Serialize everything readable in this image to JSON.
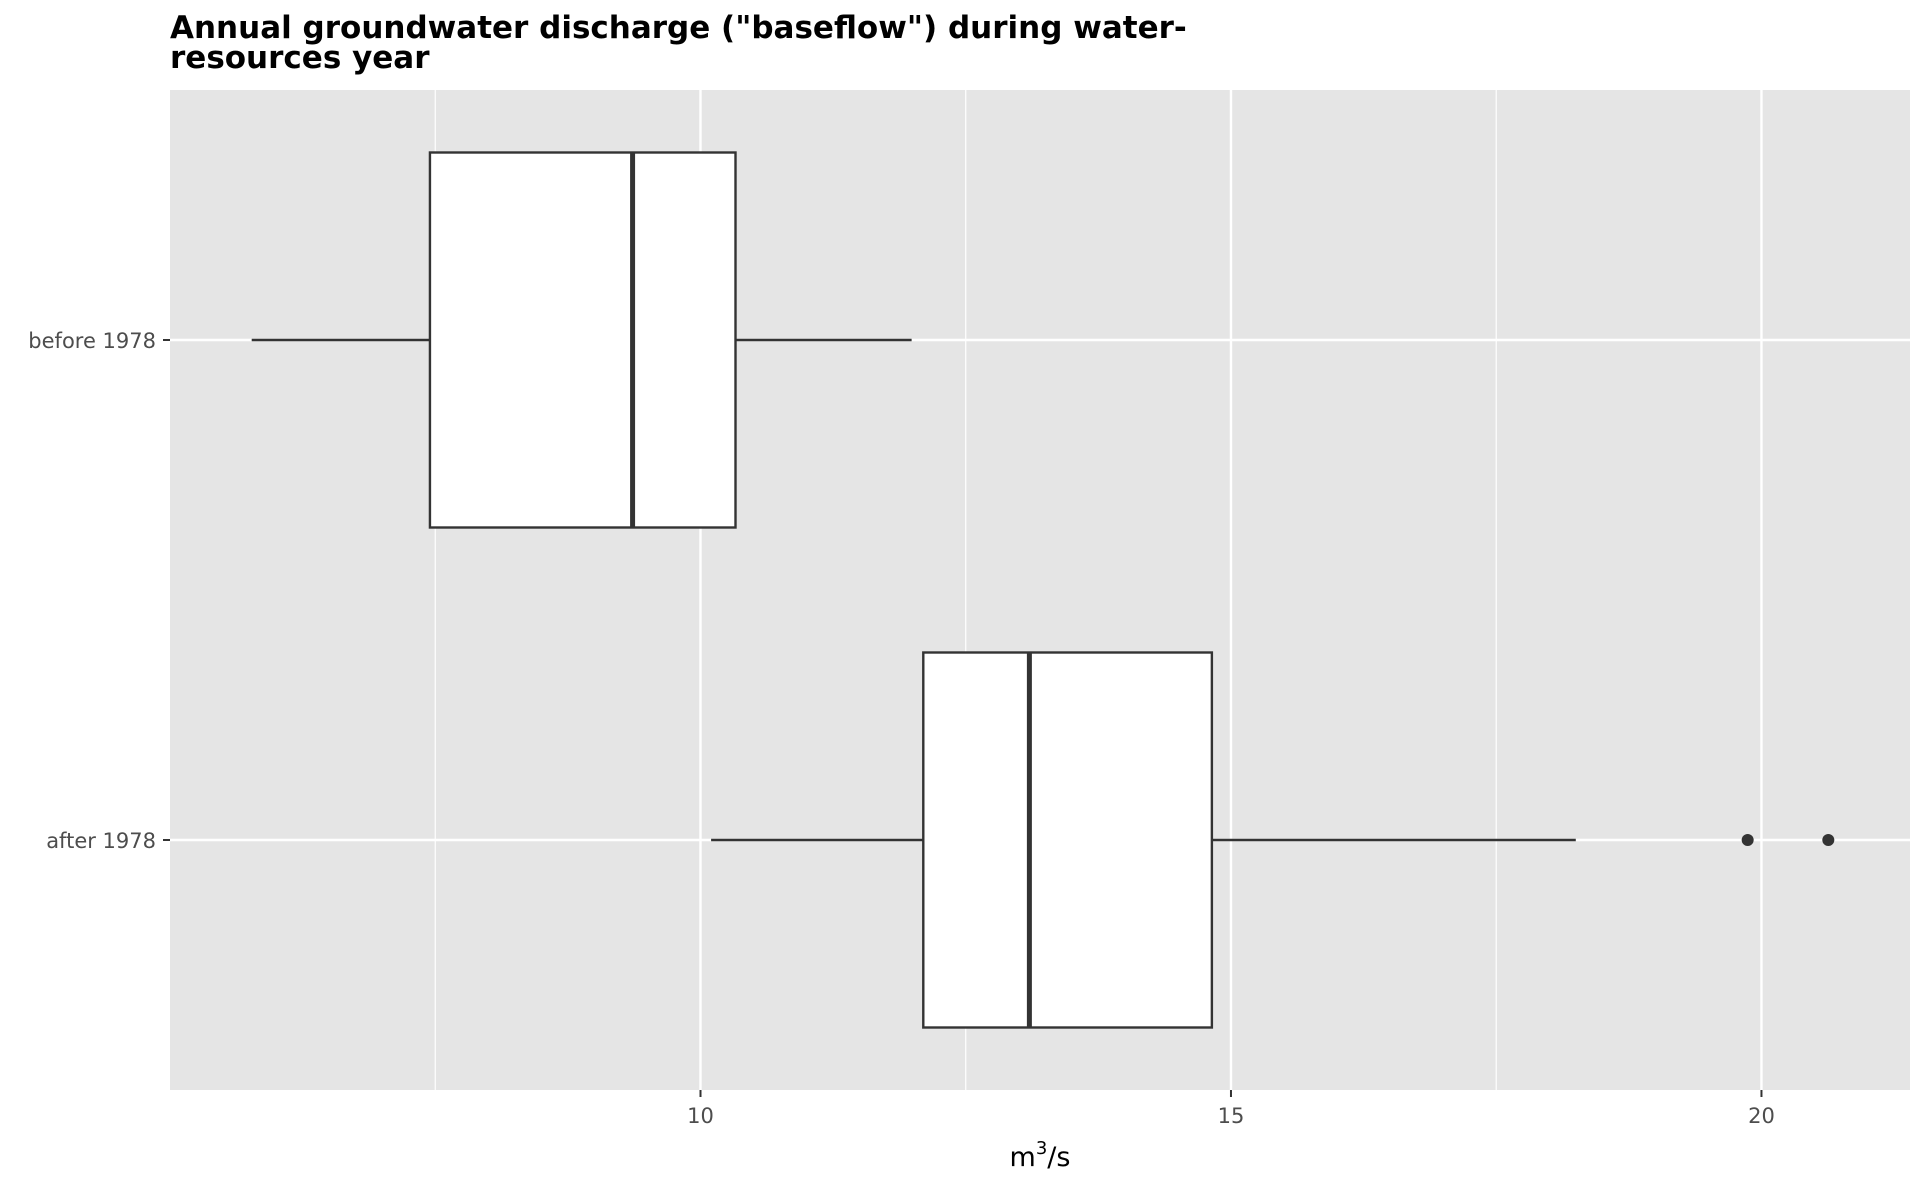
{
  "chart_data": {
    "type": "boxplot",
    "orientation": "horizontal",
    "title_lines": [
      "Annual groundwater discharge (\"baseflow\") during water-",
      "resources year"
    ],
    "xlabel": {
      "base": "m",
      "superscript": "3",
      "suffix": "/s"
    },
    "ylabel": "",
    "xlim": [
      5.0,
      21.4
    ],
    "x_ticks": [
      10,
      15,
      20
    ],
    "x_minor_ticks": [
      7.5,
      12.5,
      17.5
    ],
    "grid": true,
    "legend": "none",
    "categories": [
      "before 1978",
      "after 1978"
    ],
    "boxes": [
      {
        "category": "before 1978",
        "whisker_low": 5.77,
        "q1": 7.45,
        "median": 9.36,
        "q3": 10.33,
        "whisker_high": 11.99,
        "outliers": []
      },
      {
        "category": "after 1978",
        "whisker_low": 10.1,
        "q1": 12.1,
        "median": 13.1,
        "q3": 14.82,
        "whisker_high": 18.25,
        "outliers": [
          19.87,
          20.63
        ]
      }
    ],
    "colors": {
      "panel": "#e5e5e5",
      "grid": "#ffffff",
      "box_fill": "#ffffff",
      "box_stroke": "#333333",
      "tick_text": "#4d4d4d"
    }
  }
}
